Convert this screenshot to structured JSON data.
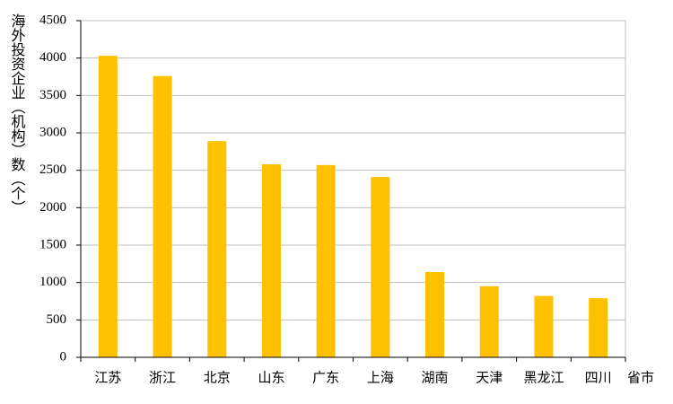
{
  "chart_data": {
    "type": "bar",
    "ylabel": "海外投资企业（机构）数（个）",
    "xlabel": "省市",
    "categories": [
      "江苏",
      "浙江",
      "北京",
      "山东",
      "广东",
      "上海",
      "湖南",
      "天津",
      "黑龙江",
      "四川"
    ],
    "values": [
      4030,
      3760,
      2890,
      2580,
      2570,
      2410,
      1140,
      950,
      820,
      790
    ],
    "color": "#ffc000",
    "ylim": [
      0,
      4500
    ],
    "yticks": [
      0,
      500,
      1000,
      1500,
      2000,
      2500,
      3000,
      3500,
      4000,
      4500
    ],
    "grid": true
  }
}
